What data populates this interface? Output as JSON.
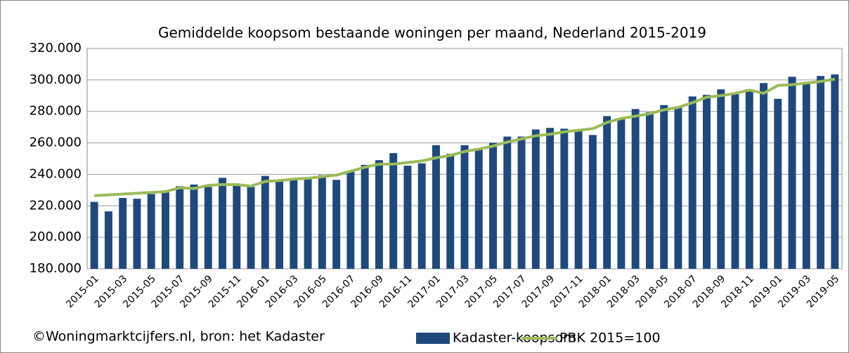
{
  "chart_data": {
    "type": "bar-line",
    "title": "Gemiddelde koopsom bestaande woningen per maand, Nederland 2015-2019",
    "source": "©Woningmarktcijfers.nl, bron: het Kadaster",
    "categories": [
      "2015-01",
      null,
      "2015-03",
      null,
      "2015-05",
      null,
      "2015-07",
      null,
      "2015-09",
      null,
      "2015-11",
      null,
      "2016-01",
      null,
      "2016-03",
      null,
      "2016-05",
      null,
      "2016-07",
      null,
      "2016-09",
      null,
      "2016-11",
      null,
      "2017-01",
      null,
      "2017-03",
      null,
      "2017-05",
      null,
      "2017-07",
      null,
      "2017-09",
      null,
      "2017-11",
      null,
      "2018-01",
      null,
      "2018-03",
      null,
      "2018-05",
      null,
      "2018-07",
      null,
      "2018-09",
      null,
      "2018-11",
      null,
      "2019-01",
      null,
      "2019-03",
      null,
      "2019-05"
    ],
    "series": [
      {
        "name": "Kadaster-koopsom",
        "type": "bar",
        "color": "#1f497d",
        "values": [
          222500,
          216500,
          225000,
          224500,
          227500,
          228500,
          232500,
          233500,
          232000,
          237800,
          234000,
          232000,
          239000,
          235500,
          236500,
          237500,
          239500,
          236500,
          242000,
          246000,
          249000,
          253500,
          245500,
          247000,
          258500,
          253000,
          258500,
          256500,
          260000,
          264000,
          264000,
          268500,
          269500,
          269000,
          267500,
          265000,
          277000,
          275000,
          281500,
          279500,
          284000,
          283000,
          289500,
          290500,
          294000,
          291000,
          294000,
          298000,
          288000,
          302000,
          298500,
          302500,
          303500
        ]
      },
      {
        "name": "PBK 2015=100",
        "type": "line",
        "color": "#9bbb59",
        "values": [
          226500,
          227000,
          227500,
          228000,
          228500,
          229000,
          231500,
          231000,
          233000,
          233500,
          233500,
          232500,
          235500,
          236000,
          237000,
          237500,
          238500,
          239500,
          242000,
          244500,
          246500,
          246500,
          247500,
          248500,
          250500,
          252000,
          254500,
          256000,
          258000,
          260500,
          262500,
          264500,
          265500,
          267000,
          268000,
          269000,
          273000,
          275500,
          277000,
          278500,
          281000,
          282500,
          285500,
          289000,
          290000,
          291500,
          293500,
          291500,
          296500,
          297000,
          298000,
          299000,
          300500
        ]
      }
    ],
    "ylim": [
      180000,
      320000
    ],
    "yticks": [
      {
        "value": 180000,
        "label": "180.000"
      },
      {
        "value": 200000,
        "label": "200.000"
      },
      {
        "value": 220000,
        "label": "220.000"
      },
      {
        "value": 240000,
        "label": "240.000"
      },
      {
        "value": 260000,
        "label": "260.000"
      },
      {
        "value": 280000,
        "label": "280.000"
      },
      {
        "value": 300000,
        "label": "300.000"
      },
      {
        "value": 320000,
        "label": "320.000"
      }
    ],
    "grid": true,
    "legend": "bottom"
  }
}
